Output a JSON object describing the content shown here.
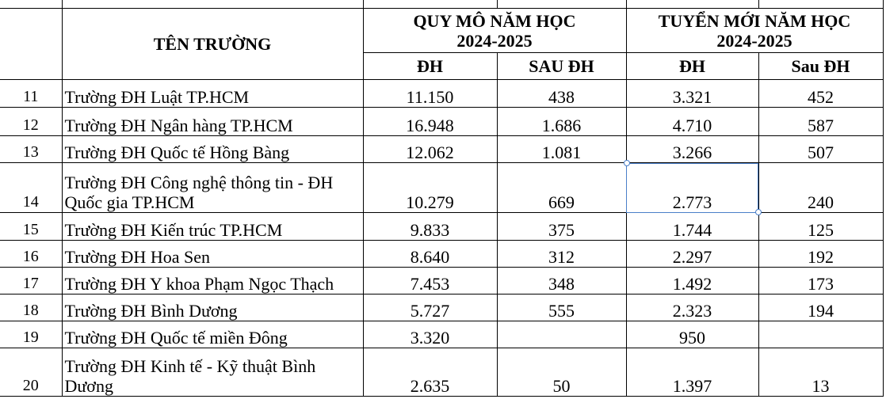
{
  "header": {
    "school_name": "TÊN TRƯỜNG",
    "scale_group": "QUY MÔ NĂM HỌC 2024-2025",
    "enroll_group": "TUYỂN MỚI NĂM HỌC 2024-2025",
    "scale_ug": "ĐH",
    "scale_grad": "SAU ĐH",
    "enroll_ug": "ĐH",
    "enroll_grad": "Sau ĐH"
  },
  "selected_cell": "14 / Tuyển mới ĐH",
  "rows": [
    {
      "stt": "11",
      "name": "Trường ĐH Luật TP.HCM",
      "scale_ug": "11.150",
      "scale_grad": "438",
      "enroll_ug": "3.321",
      "enroll_grad": "452"
    },
    {
      "stt": "12",
      "name": "Trường ĐH Ngân hàng TP.HCM",
      "scale_ug": "16.948",
      "scale_grad": "1.686",
      "enroll_ug": "4.710",
      "enroll_grad": "587"
    },
    {
      "stt": "13",
      "name": "Trường ĐH Quốc tế Hồng Bàng",
      "scale_ug": "12.062",
      "scale_grad": "1.081",
      "enroll_ug": "3.266",
      "enroll_grad": "507"
    },
    {
      "stt": "14",
      "name": "Trường ĐH Công nghệ thông tin - ĐH Quốc gia TP.HCM",
      "scale_ug": "10.279",
      "scale_grad": "669",
      "enroll_ug": "2.773",
      "enroll_grad": "240"
    },
    {
      "stt": "15",
      "name": "Trường ĐH Kiến trúc TP.HCM",
      "scale_ug": "9.833",
      "scale_grad": "375",
      "enroll_ug": "1.744",
      "enroll_grad": "125"
    },
    {
      "stt": "16",
      "name": "Trường ĐH Hoa Sen",
      "scale_ug": "8.640",
      "scale_grad": "312",
      "enroll_ug": "2.297",
      "enroll_grad": "192"
    },
    {
      "stt": "17",
      "name": "Trường ĐH Y khoa Phạm Ngọc Thạch",
      "scale_ug": "7.453",
      "scale_grad": "348",
      "enroll_ug": "1.492",
      "enroll_grad": "173"
    },
    {
      "stt": "18",
      "name": "Trường ĐH Bình Dương",
      "scale_ug": "5.727",
      "scale_grad": "555",
      "enroll_ug": "2.323",
      "enroll_grad": "194"
    },
    {
      "stt": "19",
      "name": "Trường ĐH Quốc tế miền Đông",
      "scale_ug": "3.320",
      "scale_grad": "",
      "enroll_ug": "950",
      "enroll_grad": ""
    },
    {
      "stt": "20",
      "name": "Trường ĐH Kinh tế - Kỹ thuật Bình Dương",
      "scale_ug": "2.635",
      "scale_grad": "50",
      "enroll_ug": "1.397",
      "enroll_grad": "13"
    }
  ]
}
